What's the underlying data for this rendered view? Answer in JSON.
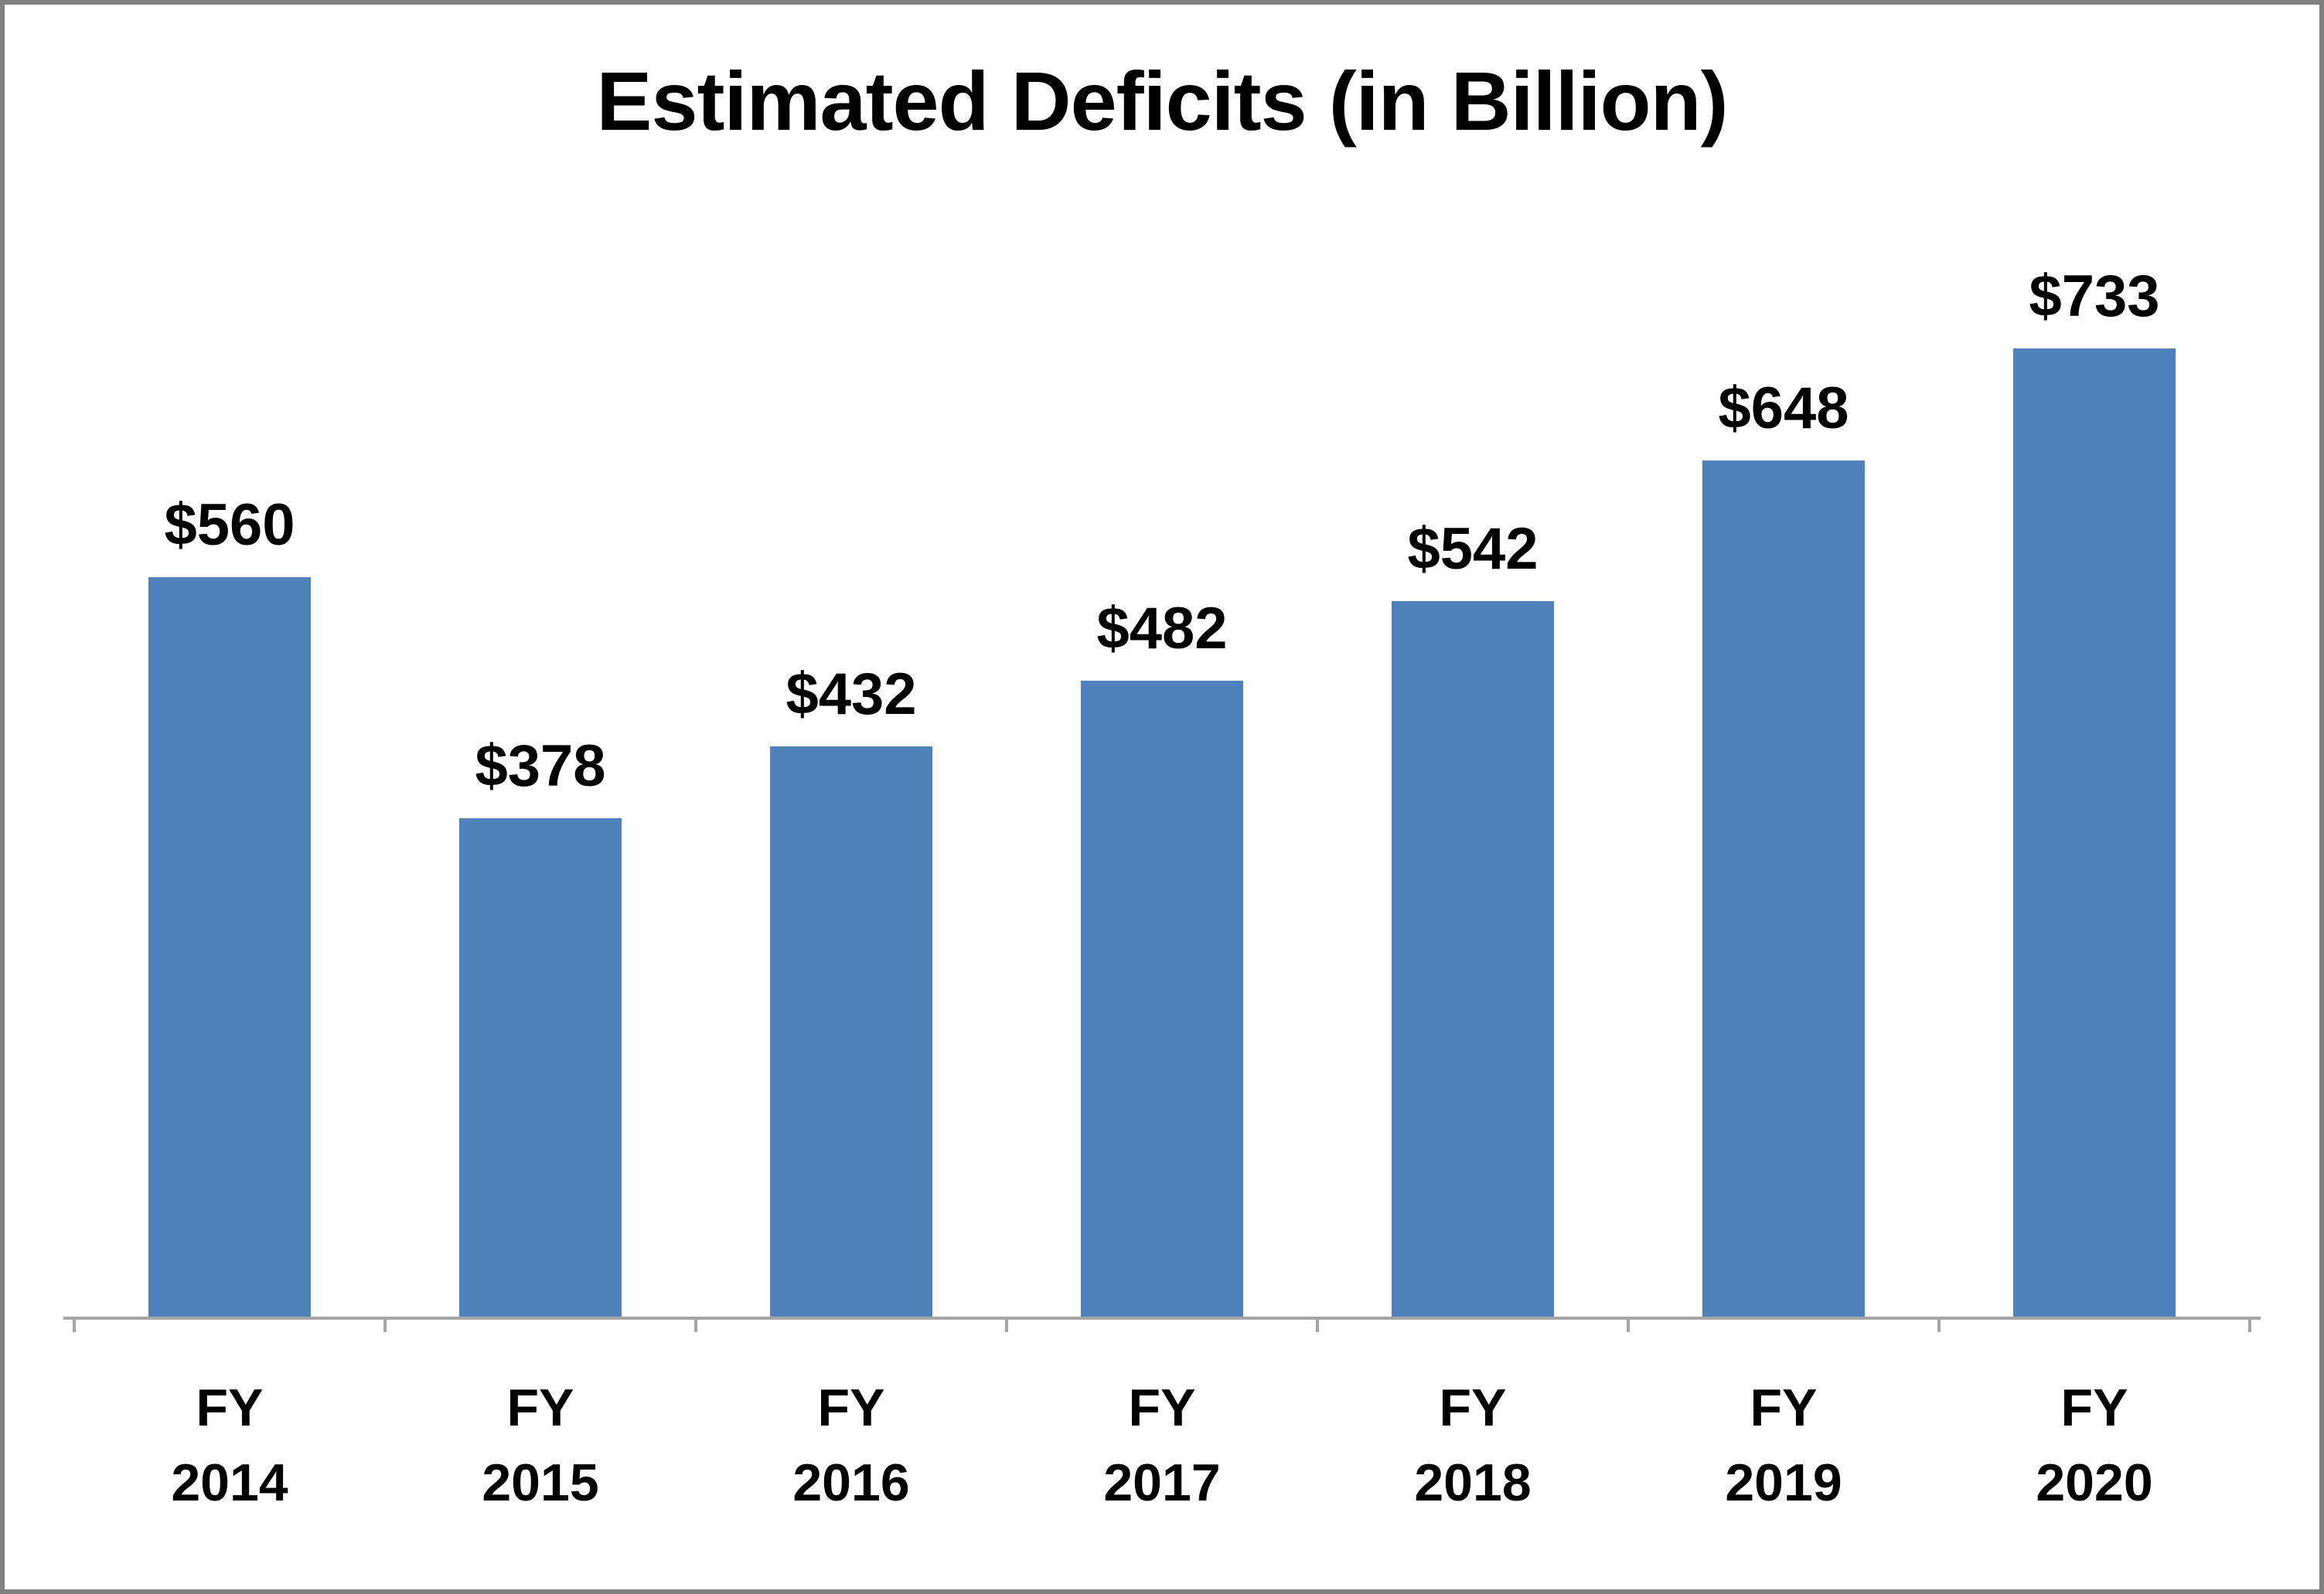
{
  "chart_data": {
    "type": "bar",
    "title": "Estimated Deficits (in Billion)",
    "categories": [
      "FY 2014",
      "FY 2015",
      "FY 2016",
      "FY 2017",
      "FY 2018",
      "FY 2019",
      "FY 2020"
    ],
    "categories_line1": [
      "FY",
      "FY",
      "FY",
      "FY",
      "FY",
      "FY",
      "FY"
    ],
    "categories_line2": [
      "2014",
      "2015",
      "2016",
      "2017",
      "2018",
      "2019",
      "2020"
    ],
    "values": [
      560,
      378,
      432,
      482,
      542,
      648,
      733
    ],
    "value_labels": [
      "$560",
      "$378",
      "$432",
      "$482",
      "$542",
      "$648",
      "$733"
    ],
    "xlabel": "",
    "ylabel": "",
    "ylim": [
      0,
      800
    ],
    "grid": false,
    "legend_position": "none",
    "bar_color": "#4f81bd",
    "axis_color": "#a6a6a6",
    "frame_color": "#7f7f7f",
    "background_color": "#ffffff",
    "text_color": "#000000"
  }
}
